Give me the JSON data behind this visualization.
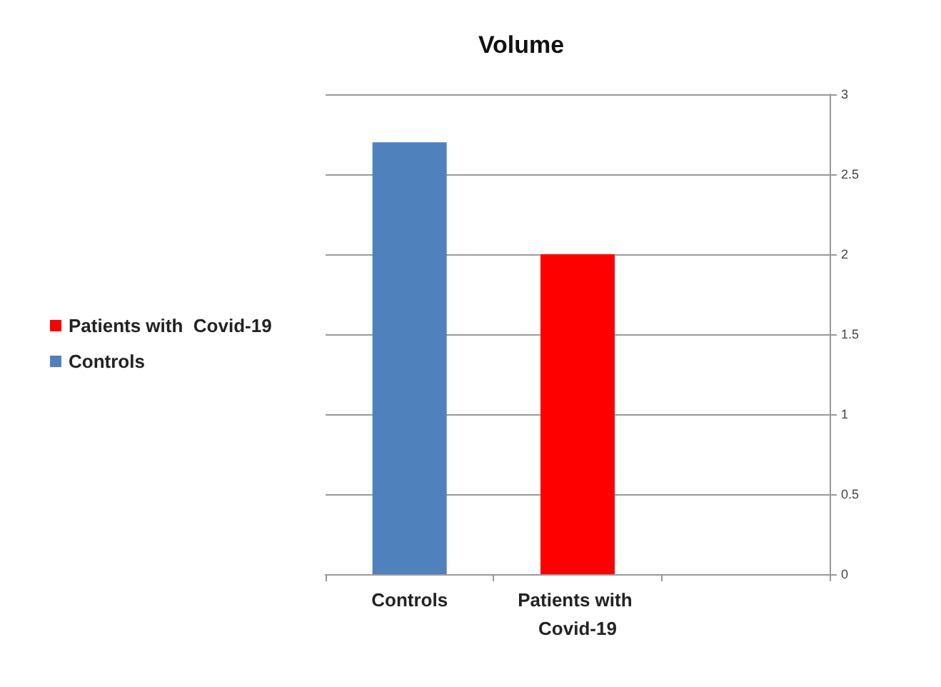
{
  "chart_data": {
    "type": "bar",
    "title": "Volume",
    "categories": [
      "Controls",
      "Patients with Covid-19",
      null
    ],
    "series": [
      {
        "name": "Patients with  Covid-19",
        "color": "#ff0000",
        "values": [
          null,
          2.0,
          null
        ]
      },
      {
        "name": "Controls",
        "color": "#4f81bd",
        "values": [
          2.7,
          null,
          null
        ]
      }
    ],
    "ylim": [
      0,
      3
    ],
    "yticks": [
      0,
      0.5,
      1,
      1.5,
      2,
      2.5,
      3
    ],
    "grid": "y",
    "legend": "left"
  }
}
